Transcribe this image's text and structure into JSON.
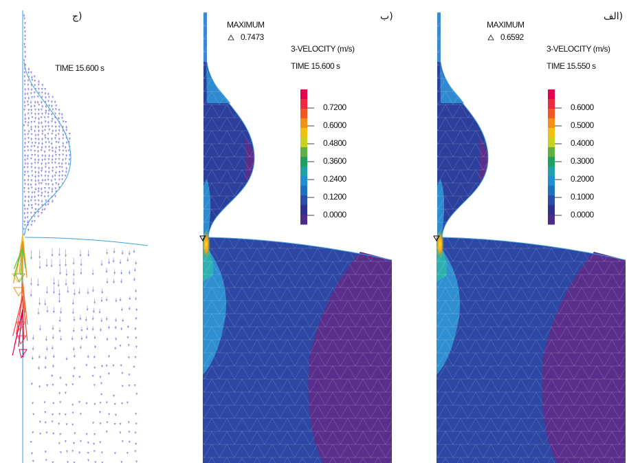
{
  "panels": [
    {
      "label": "ج)",
      "time": "TIME 15.600 s"
    },
    {
      "label": "ب)",
      "maximum_label": "MAXIMUM",
      "maximum_value": "0.7473",
      "quantity": "3-VELOCITY (m/s)",
      "time": "TIME 15.600 s",
      "legend": [
        "0.7200",
        "0.6000",
        "0.4800",
        "0.3600",
        "0.2400",
        "0.1200",
        "0.0000"
      ]
    },
    {
      "label": "الف)",
      "maximum_label": "MAXIMUM",
      "maximum_value": "0.6592",
      "quantity": "3-VELOCITY (m/s)",
      "time": "TIME 15.550 s",
      "legend": [
        "0.6000",
        "0.5000",
        "0.4000",
        "0.3000",
        "0.2000",
        "0.1000",
        "0.0000"
      ]
    }
  ]
}
